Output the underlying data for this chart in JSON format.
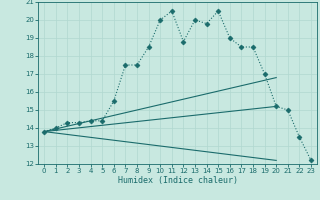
{
  "xlabel": "Humidex (Indice chaleur)",
  "bg_color": "#c8e8e0",
  "grid_color": "#b0d8d0",
  "line_color": "#1a6b6b",
  "xlim": [
    -0.5,
    23.5
  ],
  "ylim": [
    12,
    21
  ],
  "xticks": [
    0,
    1,
    2,
    3,
    4,
    5,
    6,
    7,
    8,
    9,
    10,
    11,
    12,
    13,
    14,
    15,
    16,
    17,
    18,
    19,
    20,
    21,
    22,
    23
  ],
  "yticks": [
    12,
    13,
    14,
    15,
    16,
    17,
    18,
    19,
    20,
    21
  ],
  "main_series": {
    "x": [
      0,
      1,
      2,
      3,
      4,
      5,
      6,
      7,
      8,
      9,
      10,
      11,
      12,
      13,
      14,
      15,
      16,
      17,
      18,
      19,
      20,
      21,
      22,
      23
    ],
    "y": [
      13.8,
      14.0,
      14.3,
      14.3,
      14.4,
      14.4,
      15.5,
      17.5,
      17.5,
      18.5,
      20.0,
      20.5,
      18.8,
      20.0,
      19.8,
      20.5,
      19.0,
      18.5,
      18.5,
      17.0,
      15.2,
      15.0,
      13.5,
      12.2
    ]
  },
  "straight_lines": [
    {
      "x": [
        0,
        20
      ],
      "y": [
        13.8,
        16.8
      ]
    },
    {
      "x": [
        0,
        20
      ],
      "y": [
        13.8,
        15.2
      ]
    },
    {
      "x": [
        0,
        20
      ],
      "y": [
        13.8,
        12.2
      ]
    }
  ]
}
